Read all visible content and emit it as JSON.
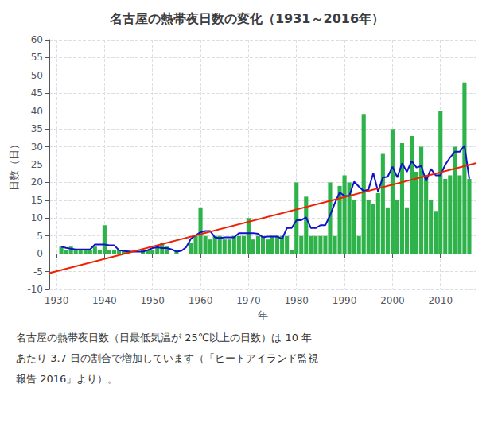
{
  "chart_data": {
    "type": "bar",
    "title": "名古屋の熱帯夜日数の変化（1931～2016年）",
    "xlabel": "年",
    "ylabel": "日数（日）",
    "annotations": [
      "名古屋の熱帯夜日数（日最低気温が 25℃以上の日数）は 10 年",
      "あたり 3.7 日の割合で増加しています（「ヒートアイランド監視",
      "報告 2016」より）。"
    ],
    "x": [
      1931,
      1932,
      1933,
      1934,
      1935,
      1936,
      1937,
      1938,
      1939,
      1940,
      1941,
      1942,
      1943,
      1944,
      1945,
      1946,
      1947,
      1948,
      1949,
      1950,
      1951,
      1952,
      1953,
      1954,
      1955,
      1956,
      1957,
      1958,
      1959,
      1960,
      1961,
      1962,
      1963,
      1964,
      1965,
      1966,
      1967,
      1968,
      1969,
      1970,
      1971,
      1972,
      1973,
      1974,
      1975,
      1976,
      1977,
      1978,
      1979,
      1980,
      1981,
      1982,
      1983,
      1984,
      1985,
      1986,
      1987,
      1988,
      1989,
      1990,
      1991,
      1992,
      1993,
      1994,
      1995,
      1996,
      1997,
      1998,
      1999,
      2000,
      2001,
      2002,
      2003,
      2004,
      2005,
      2006,
      2007,
      2008,
      2009,
      2010,
      2011,
      2012,
      2013,
      2014,
      2015,
      2016
    ],
    "series": [
      {
        "type": "bar",
        "color": "#2db34a",
        "values": [
          2,
          1,
          2,
          1,
          1,
          1,
          1,
          2,
          1,
          8,
          1,
          1,
          1,
          1,
          1,
          0,
          0,
          1,
          1,
          1,
          2,
          3,
          2,
          0,
          1,
          0,
          0,
          3,
          5,
          13,
          5,
          4,
          5,
          5,
          4,
          4,
          5,
          5,
          5,
          10,
          4,
          5,
          5,
          4,
          5,
          5,
          5,
          5,
          1,
          20,
          5,
          16,
          5,
          5,
          5,
          5,
          20,
          5,
          19,
          22,
          20,
          15,
          5,
          39,
          15,
          14,
          17,
          28,
          13,
          35,
          15,
          31,
          13,
          33,
          23,
          30,
          22,
          15,
          12,
          40,
          21,
          22,
          30,
          22,
          48,
          21
        ]
      },
      {
        "type": "line",
        "color": "#1111cc",
        "values": [
          2,
          1.6667,
          1.4,
          1.2,
          1.2,
          1.2,
          1.2,
          2.6,
          2.6,
          2.6,
          2.4,
          2.4,
          1.0,
          0.8,
          0.6,
          0.6,
          0.6,
          0.6,
          1.0,
          1.6,
          1.8,
          1.6,
          1.6,
          1.2,
          0.6,
          0.8,
          1.8,
          4.2,
          5.2,
          6.0,
          6.4,
          6.4,
          4.6,
          4.4,
          4.6,
          4.6,
          4.6,
          5.8,
          5.8,
          5.8,
          5.8,
          5.6,
          4.6,
          4.8,
          4.8,
          4.8,
          4.2,
          7.2,
          7.2,
          9.4,
          9.4,
          10.2,
          7.2,
          7.2,
          8.0,
          8.0,
          10.8,
          14.2,
          17.2,
          16.2,
          16.2,
          20.2,
          18.8,
          17.6,
          18.0,
          22.6,
          17.4,
          21.4,
          21.6,
          24.4,
          21.4,
          25.4,
          23.0,
          26.0,
          24.2,
          24.6,
          20.4,
          23.8,
          22.0,
          22.0,
          25.0,
          27.0,
          28.6,
          28.6,
          30.3333,
          21
        ]
      },
      {
        "type": "line",
        "color": "#ee2200",
        "x": [
          1928.5,
          2017.5
        ],
        "values": [
          -5.4487,
          25.4274
        ]
      }
    ],
    "xlim": [
      1928.5,
      2017.5
    ],
    "xticks": [
      1930,
      1940,
      1950,
      1960,
      1970,
      1980,
      1990,
      2000,
      2010
    ],
    "ylim": [
      -10,
      60
    ],
    "yticks": [
      -10,
      -5,
      0,
      5,
      10,
      15,
      20,
      25,
      30,
      35,
      40,
      45,
      50,
      55,
      60
    ],
    "grid": true
  }
}
